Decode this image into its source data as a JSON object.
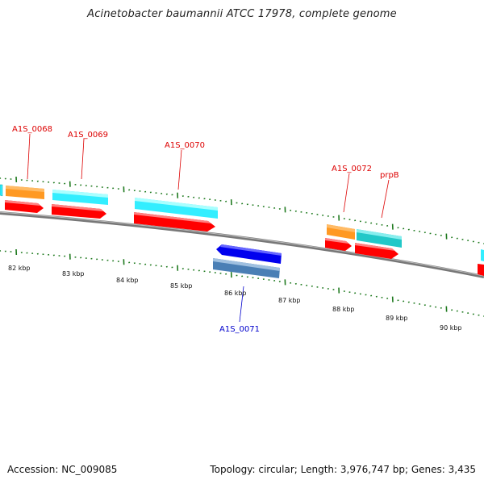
{
  "title": "Acinetobacter baumannii ATCC 17978, complete genome",
  "footer": {
    "accession": "Accession: NC_009085",
    "summary": "Topology: circular; Length: 3,976,747 bp; Genes: 3,435"
  },
  "colors": {
    "backbone": "#8a8a8a",
    "tick": "#1f7a1f",
    "cds": "#ff0000",
    "gene_cyan": "#33eeff",
    "gene_teal": "#22c8c8",
    "gene_orange": "#ff9922",
    "reverse_cds": "#0000ee",
    "reverse_gene": "#4a7fb5",
    "label_forward": "#dd0000",
    "label_reverse": "#0000cc"
  },
  "scale_labels": [
    "82 kbp",
    "83 kbp",
    "84 kbp",
    "85 kbp",
    "86 kbp",
    "87 kbp",
    "88 kbp",
    "89 kbp",
    "90 kbp"
  ],
  "gene_labels": [
    {
      "text": "A1S_0068",
      "strand": "forward"
    },
    {
      "text": "A1S_0069",
      "strand": "forward"
    },
    {
      "text": "A1S_0070",
      "strand": "forward"
    },
    {
      "text": "A1S_0072",
      "strand": "forward"
    },
    {
      "text": "prpB",
      "strand": "forward"
    },
    {
      "text": "A1S_0071",
      "strand": "reverse"
    }
  ]
}
